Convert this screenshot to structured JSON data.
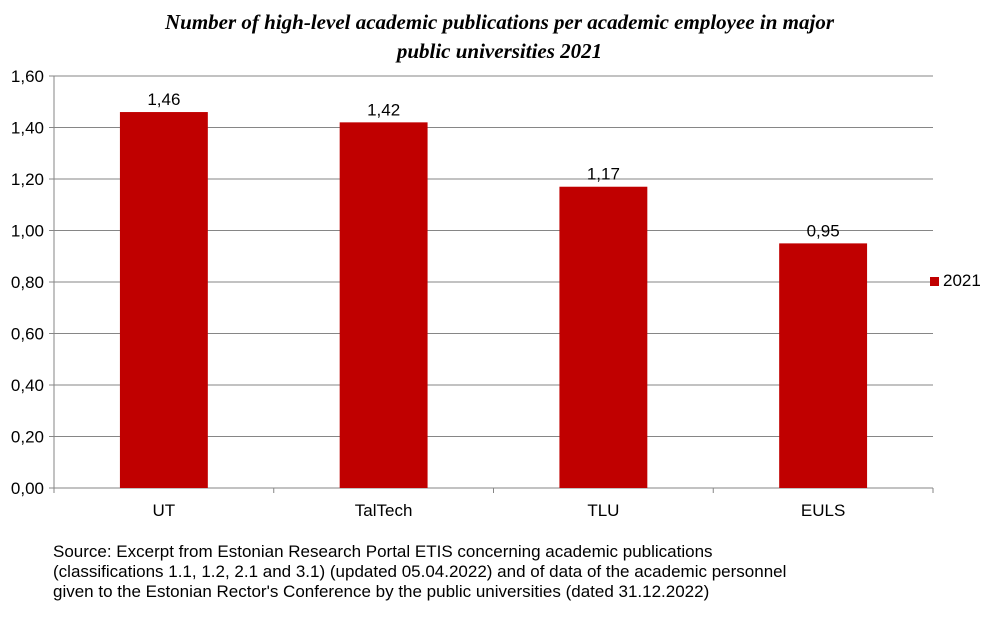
{
  "title_lines": [
    "Number of high-level academic publications per academic employee in major",
    "public universities 2021"
  ],
  "source_lines": [
    "Source: Excerpt from Estonian Research Portal ETIS concerning academic publications",
    "(classifications 1.1, 1.2, 2.1  and 3.1)  (updated 05.04.2022) and of data of the academic personnel",
    "given to the Estonian Rector's Conference by the public universities (dated 31.12.2022)"
  ],
  "colors": {
    "bar": "#C00000",
    "grid": "#868686",
    "axis": "#868686"
  },
  "chart_data": {
    "type": "bar",
    "title": "Number of high-level academic publications per academic employee in major public universities 2021",
    "categories": [
      "UT",
      "TalTech",
      "TLU",
      "EULS"
    ],
    "series": [
      {
        "name": "2021",
        "values": [
          1.46,
          1.42,
          1.17,
          0.95
        ]
      }
    ],
    "data_labels": [
      "1,46",
      "1,42",
      "1,17",
      "0,95"
    ],
    "ylim": [
      0,
      1.6
    ],
    "yticks": [
      "0,00",
      "0,20",
      "0,40",
      "0,60",
      "0,80",
      "1,00",
      "1,20",
      "1,40",
      "1,60"
    ],
    "grid": true,
    "legend_position": "right"
  }
}
